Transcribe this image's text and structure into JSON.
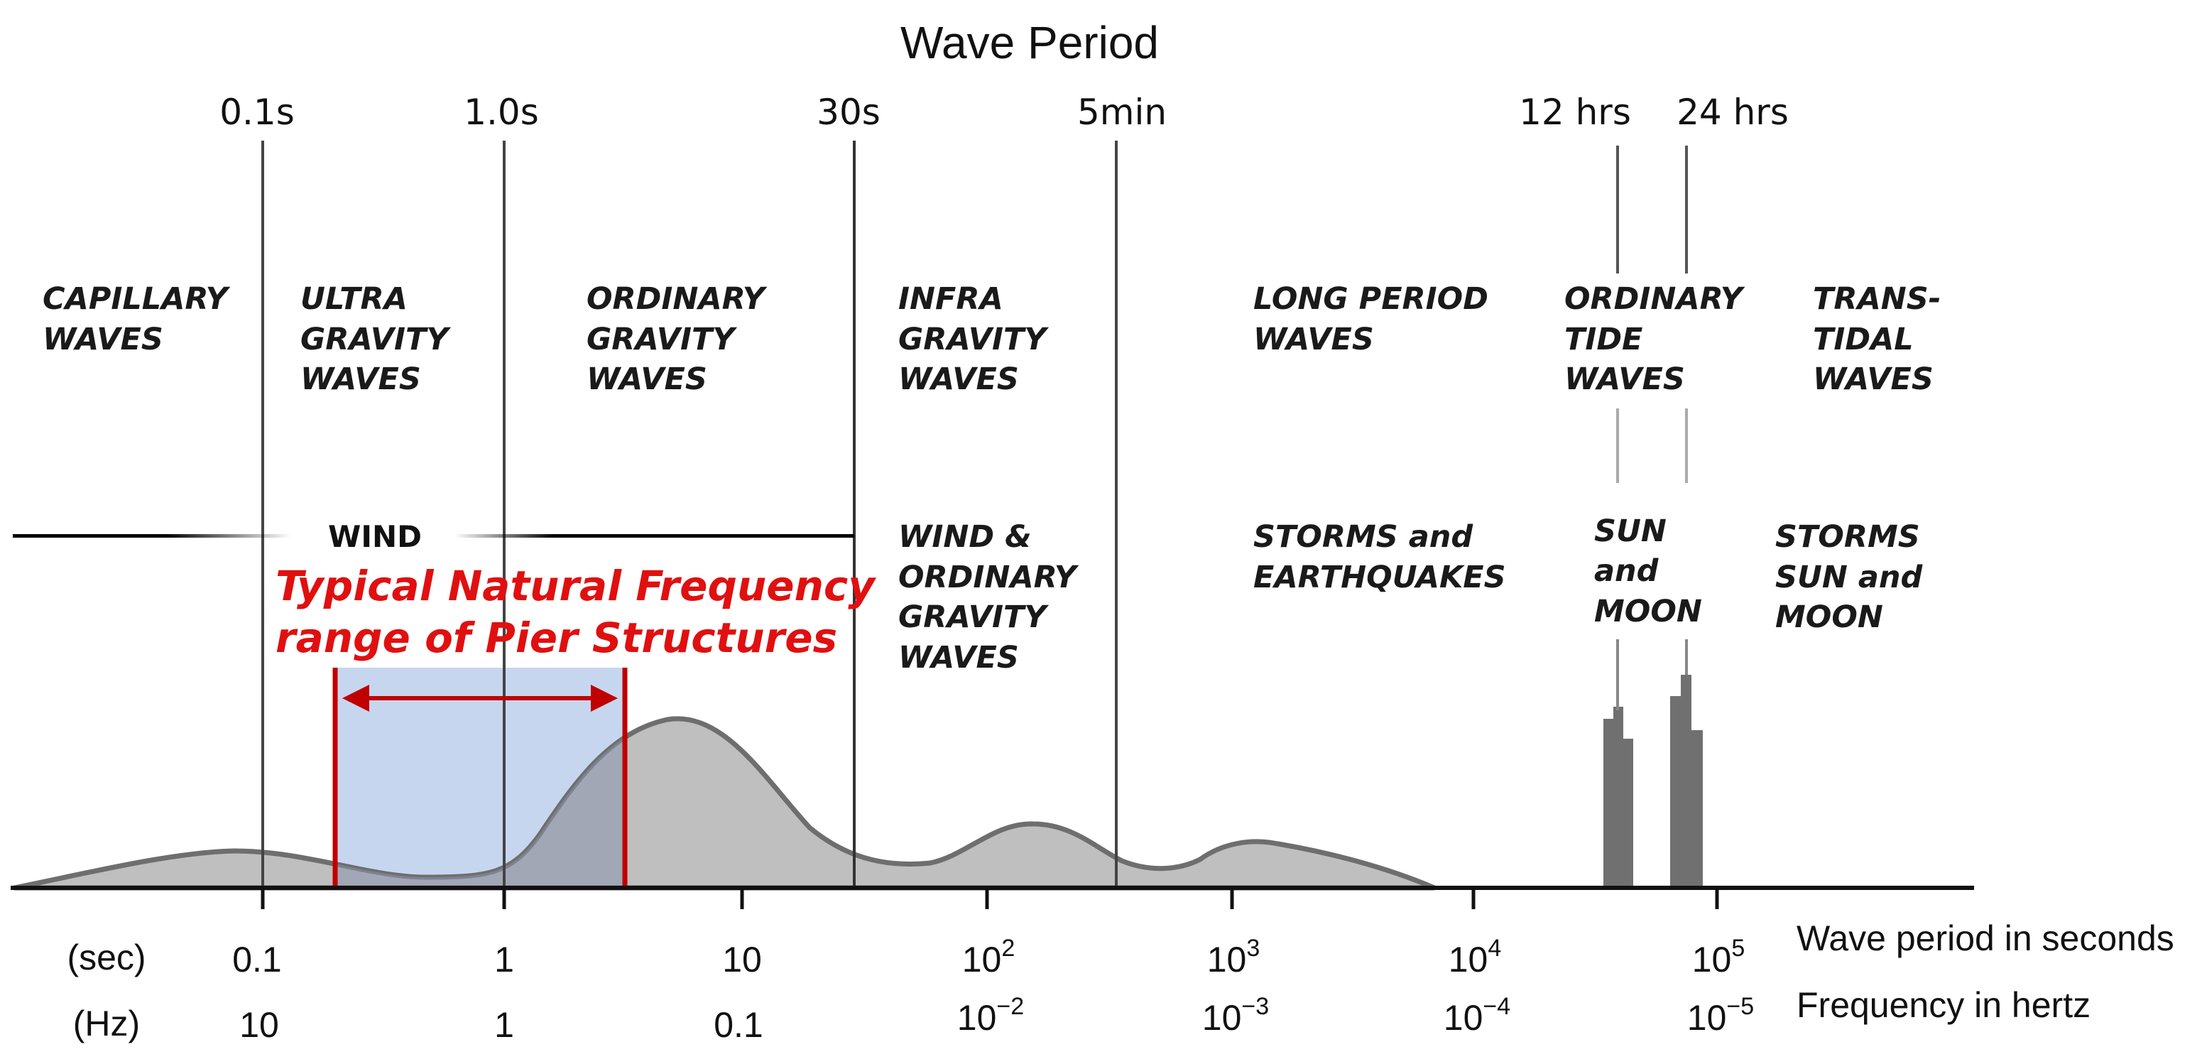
{
  "title": "Wave Period",
  "top_period_labels": [
    "0.1s",
    "1.0s",
    "30s",
    "5min",
    "12 hrs",
    "24 hrs"
  ],
  "regions": [
    {
      "lines": [
        "CAPILLARY",
        "WAVES"
      ]
    },
    {
      "lines": [
        "ULTRA",
        "GRAVITY",
        "WAVES"
      ]
    },
    {
      "lines": [
        "ORDINARY",
        "GRAVITY",
        "WAVES"
      ]
    },
    {
      "lines": [
        "INFRA",
        "GRAVITY",
        "WAVES"
      ]
    },
    {
      "lines": [
        "LONG PERIOD",
        "WAVES"
      ]
    },
    {
      "lines": [
        "ORDINARY",
        "TIDE",
        "WAVES"
      ]
    },
    {
      "lines": [
        "TRANS-",
        "TIDAL",
        "WAVES"
      ]
    }
  ],
  "forces": [
    {
      "lines": [
        "WIND"
      ]
    },
    {
      "lines": [
        "WIND &",
        "ORDINARY",
        "GRAVITY",
        "WAVES"
      ]
    },
    {
      "lines": [
        "STORMS and",
        "EARTHQUAKES"
      ]
    },
    {
      "lines": [
        "SUN",
        "and",
        "MOON"
      ]
    },
    {
      "lines": [
        "STORMS",
        "SUN and",
        "MOON"
      ]
    }
  ],
  "annotation": {
    "lines": [
      "Typical Natural Frequency",
      "range of Pier Structures"
    ]
  },
  "axis": {
    "sec_label": "(sec)",
    "hz_label": "(Hz)",
    "period_ticks": [
      {
        "base": "0.1",
        "exp": ""
      },
      {
        "base": "1",
        "exp": ""
      },
      {
        "base": "10",
        "exp": ""
      },
      {
        "base": "10",
        "exp": "2"
      },
      {
        "base": "10",
        "exp": "3"
      },
      {
        "base": "10",
        "exp": "4"
      },
      {
        "base": "10",
        "exp": "5"
      }
    ],
    "freq_ticks": [
      {
        "base": "10",
        "exp": ""
      },
      {
        "base": "1",
        "exp": ""
      },
      {
        "base": "0.1",
        "exp": ""
      },
      {
        "base": "10",
        "exp": "−2"
      },
      {
        "base": "10",
        "exp": "−3"
      },
      {
        "base": "10",
        "exp": "−4"
      },
      {
        "base": "10",
        "exp": "−5"
      }
    ],
    "period_desc": "Wave period in seconds",
    "freq_desc": "Frequency in hertz"
  },
  "colors": {
    "spectrum_fill": "#bfbfbf",
    "spectrum_stroke": "#6e6e6e",
    "band_fill": "#c6d6ef",
    "annotation": "#e01010",
    "bracket": "#c00000"
  }
}
